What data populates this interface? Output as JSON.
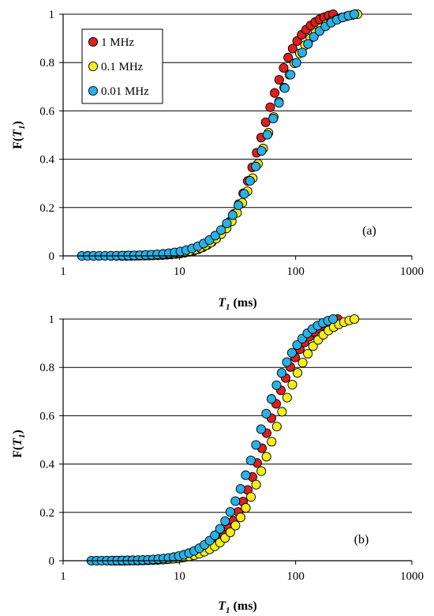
{
  "chart_data": [
    {
      "type": "scatter",
      "panel_label": "(a)",
      "xlabel": "T1 (ms)",
      "ylabel": "F(T1)",
      "xscale": "log",
      "xlim": [
        1,
        1000
      ],
      "ylim": [
        0,
        1
      ],
      "x_ticks": [
        "1",
        "10",
        "100",
        "1000"
      ],
      "y_ticks": [
        "0",
        "0.2",
        "0.4",
        "0.6",
        "0.8",
        "1"
      ],
      "grid": "horizontal",
      "legend": "top-left",
      "series": [
        {
          "name": "1 MHz",
          "color": "#dd1f1f",
          "t_start": 3.2,
          "t_end": 210,
          "t50": 52,
          "k": 2.8
        },
        {
          "name": "0.1 MHz",
          "color": "#f4ee1a",
          "t_start": 2.6,
          "t_end": 340,
          "t50": 58,
          "k": 2.5
        },
        {
          "name": "0.01 MHz",
          "color": "#29b1e6",
          "t_start": 1.45,
          "t_end": 320,
          "t50": 58,
          "k": 2.3
        }
      ]
    },
    {
      "type": "scatter",
      "panel_label": "(b)",
      "xlabel": "T1 (ms)",
      "ylabel": "F(T1)",
      "xscale": "log",
      "xlim": [
        1,
        1000
      ],
      "ylim": [
        0,
        1
      ],
      "x_ticks": [
        "1",
        "10",
        "100",
        "1000"
      ],
      "y_ticks": [
        "0",
        "0.2",
        "0.4",
        "0.6",
        "0.8",
        "1"
      ],
      "grid": "horizontal",
      "series": [
        {
          "name": "1 MHz",
          "color": "#dd1f1f",
          "t_start": 2.8,
          "t_end": 230,
          "t50": 55,
          "k": 2.6
        },
        {
          "name": "0.1 MHz",
          "color": "#f4ee1a",
          "t_start": 2.6,
          "t_end": 320,
          "t50": 64,
          "k": 2.4
        },
        {
          "name": "0.01 MHz",
          "color": "#29b1e6",
          "t_start": 1.75,
          "t_end": 210,
          "t50": 48,
          "k": 2.5
        }
      ]
    }
  ]
}
